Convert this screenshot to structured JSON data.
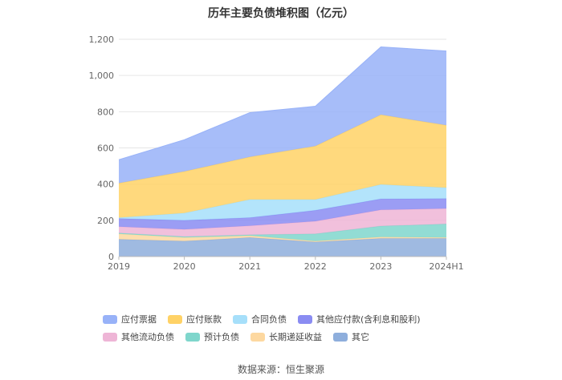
{
  "chart_data": {
    "type": "area",
    "title": "历年主要负债堆积图（亿元）",
    "categories": [
      "2019",
      "2020",
      "2021",
      "2022",
      "2023",
      "2024H1"
    ],
    "ylim": [
      0,
      1200
    ],
    "yticks": [
      "0",
      "200",
      "400",
      "600",
      "800",
      "1,000",
      "1,200"
    ],
    "ytick_values": [
      0,
      200,
      400,
      600,
      800,
      1000,
      1200
    ],
    "stacked": true,
    "series": [
      {
        "name": "其它",
        "color": "#8eaedc",
        "values": [
          95,
          85,
          105,
          80,
          100,
          100
        ]
      },
      {
        "name": "长期递延收益",
        "color": "#fdd8a0",
        "values": [
          30,
          20,
          10,
          5,
          8,
          5
        ]
      },
      {
        "name": "预计负债",
        "color": "#7fd6cc",
        "values": [
          5,
          5,
          5,
          40,
          60,
          75
        ]
      },
      {
        "name": "其他流动负债",
        "color": "#eeb5d6",
        "values": [
          35,
          40,
          50,
          70,
          90,
          85
        ]
      },
      {
        "name": "其他应付款(含利息和股利)",
        "color": "#8a8cf2",
        "values": [
          45,
          50,
          45,
          60,
          60,
          55
        ]
      },
      {
        "name": "合同负债",
        "color": "#a6dffa",
        "values": [
          5,
          40,
          100,
          60,
          80,
          60
        ]
      },
      {
        "name": "应付账款",
        "color": "#ffd266",
        "values": [
          190,
          230,
          235,
          295,
          385,
          345
        ]
      },
      {
        "name": "应付票据",
        "color": "#98b2f8",
        "values": [
          130,
          175,
          245,
          220,
          375,
          410
        ]
      }
    ]
  },
  "legend": {
    "items": [
      {
        "name": "应付票据",
        "color": "#98b2f8"
      },
      {
        "name": "应付账款",
        "color": "#ffd266"
      },
      {
        "name": "合同负债",
        "color": "#a6dffa"
      },
      {
        "name": "其他应付款(含利息和股利)",
        "color": "#8a8cf2"
      },
      {
        "name": "其他流动负债",
        "color": "#eeb5d6"
      },
      {
        "name": "预计负债",
        "color": "#7fd6cc"
      },
      {
        "name": "长期递延收益",
        "color": "#fdd8a0"
      },
      {
        "name": "其它",
        "color": "#8eaedc"
      }
    ]
  },
  "source": "数据来源：恒生聚源"
}
